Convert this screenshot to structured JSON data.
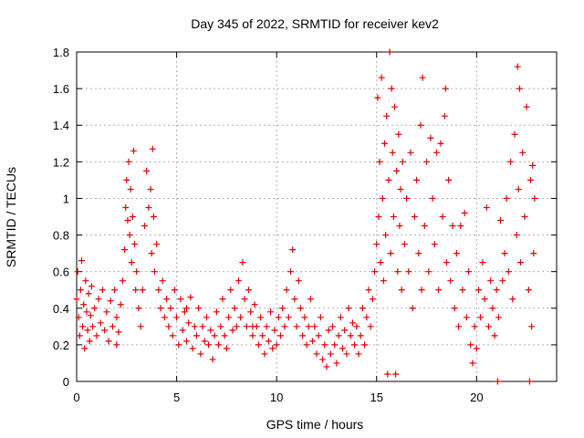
{
  "chart_data": {
    "type": "scatter",
    "title": "Day 345 of 2022, SRMTID for receiver kev2",
    "xlabel": "GPS time / hours",
    "ylabel": "SRMTID / TECUs",
    "xlim": [
      0,
      24
    ],
    "ylim": [
      0,
      1.8
    ],
    "xticks": [
      0,
      5,
      10,
      15,
      20
    ],
    "xtick_labels": [
      "0",
      "5",
      "10",
      "15",
      "20"
    ],
    "yticks": [
      0,
      0.2,
      0.4,
      0.6,
      0.8,
      1,
      1.2,
      1.4,
      1.6,
      1.8
    ],
    "ytick_labels": [
      "0",
      "0.2",
      "0.4",
      "0.6",
      "0.8",
      "1",
      "1.2",
      "1.4",
      "1.6",
      "1.8"
    ],
    "grid": true,
    "marker": "plus",
    "color": "#e00000",
    "series": [
      {
        "name": "SRMTID",
        "points": [
          [
            0.0,
            0.45
          ],
          [
            0.05,
            0.6
          ],
          [
            0.1,
            0.35
          ],
          [
            0.15,
            0.25
          ],
          [
            0.2,
            0.5
          ],
          [
            0.25,
            0.66
          ],
          [
            0.3,
            0.3
          ],
          [
            0.35,
            0.42
          ],
          [
            0.4,
            0.18
          ],
          [
            0.45,
            0.55
          ],
          [
            0.5,
            0.38
          ],
          [
            0.55,
            0.28
          ],
          [
            0.6,
            0.48
          ],
          [
            0.65,
            0.22
          ],
          [
            0.7,
            0.36
          ],
          [
            0.75,
            0.52
          ],
          [
            0.8,
            0.3
          ],
          [
            0.9,
            0.4
          ],
          [
            1.0,
            0.25
          ],
          [
            1.1,
            0.45
          ],
          [
            1.2,
            0.32
          ],
          [
            1.3,
            0.5
          ],
          [
            1.4,
            0.28
          ],
          [
            1.5,
            0.38
          ],
          [
            1.6,
            0.22
          ],
          [
            1.7,
            0.44
          ],
          [
            1.8,
            0.3
          ],
          [
            1.9,
            0.5
          ],
          [
            2.0,
            0.35
          ],
          [
            2.1,
            0.27
          ],
          [
            2.2,
            0.42
          ],
          [
            2.3,
            0.55
          ],
          [
            2.4,
            0.72
          ],
          [
            2.45,
            0.95
          ],
          [
            2.5,
            1.1
          ],
          [
            2.55,
            0.88
          ],
          [
            2.6,
            1.2
          ],
          [
            2.65,
            0.8
          ],
          [
            2.7,
            1.05
          ],
          [
            2.75,
            0.65
          ],
          [
            2.8,
            0.9
          ],
          [
            2.85,
            1.26
          ],
          [
            2.9,
            0.75
          ],
          [
            2.95,
            0.5
          ],
          [
            3.0,
            0.6
          ],
          [
            3.1,
            0.4
          ],
          [
            3.2,
            0.3
          ],
          [
            3.3,
            0.5
          ],
          [
            3.4,
            0.85
          ],
          [
            3.5,
            1.15
          ],
          [
            3.6,
            0.95
          ],
          [
            3.7,
            1.05
          ],
          [
            3.75,
            0.7
          ],
          [
            3.8,
            1.27
          ],
          [
            3.85,
            0.9
          ],
          [
            3.9,
            0.6
          ],
          [
            4.0,
            0.75
          ],
          [
            4.1,
            0.5
          ],
          [
            4.2,
            0.4
          ],
          [
            4.3,
            0.55
          ],
          [
            4.4,
            0.35
          ],
          [
            4.5,
            0.45
          ],
          [
            4.6,
            0.3
          ],
          [
            4.7,
            0.4
          ],
          [
            4.8,
            0.25
          ],
          [
            4.9,
            0.5
          ],
          [
            5.0,
            0.35
          ],
          [
            5.1,
            0.2
          ],
          [
            5.2,
            0.45
          ],
          [
            5.3,
            0.28
          ],
          [
            5.4,
            0.38
          ],
          [
            5.5,
            0.22
          ],
          [
            5.6,
            0.32
          ],
          [
            5.7,
            0.46
          ],
          [
            5.8,
            0.18
          ],
          [
            5.9,
            0.3
          ],
          [
            6.0,
            0.25
          ],
          [
            6.1,
            0.4
          ],
          [
            6.2,
            0.15
          ],
          [
            6.3,
            0.3
          ],
          [
            6.4,
            0.22
          ],
          [
            6.5,
            0.35
          ],
          [
            6.6,
            0.2
          ],
          [
            6.7,
            0.28
          ],
          [
            6.8,
            0.12
          ],
          [
            6.9,
            0.25
          ],
          [
            7.0,
            0.38
          ],
          [
            7.1,
            0.2
          ],
          [
            7.2,
            0.3
          ],
          [
            7.3,
            0.45
          ],
          [
            7.4,
            0.25
          ],
          [
            7.5,
            0.18
          ],
          [
            7.6,
            0.35
          ],
          [
            7.7,
            0.5
          ],
          [
            7.8,
            0.28
          ],
          [
            7.9,
            0.4
          ],
          [
            8.0,
            0.3
          ],
          [
            8.1,
            0.55
          ],
          [
            8.2,
            0.35
          ],
          [
            8.3,
            0.65
          ],
          [
            8.4,
            0.45
          ],
          [
            8.5,
            0.3
          ],
          [
            8.6,
            0.5
          ],
          [
            8.7,
            0.38
          ],
          [
            8.8,
            0.25
          ],
          [
            8.9,
            0.42
          ],
          [
            9.0,
            0.3
          ],
          [
            9.1,
            0.2
          ],
          [
            9.2,
            0.35
          ],
          [
            9.3,
            0.25
          ],
          [
            9.4,
            0.15
          ],
          [
            9.5,
            0.3
          ],
          [
            9.6,
            0.22
          ],
          [
            9.7,
            0.38
          ],
          [
            9.8,
            0.18
          ],
          [
            9.9,
            0.28
          ],
          [
            10.0,
            0.2
          ],
          [
            10.1,
            0.35
          ],
          [
            10.2,
            0.25
          ],
          [
            10.3,
            0.4
          ],
          [
            10.4,
            0.3
          ],
          [
            10.5,
            0.5
          ],
          [
            10.6,
            0.35
          ],
          [
            10.7,
            0.6
          ],
          [
            10.8,
            0.72
          ],
          [
            10.9,
            0.45
          ],
          [
            11.0,
            0.3
          ],
          [
            11.1,
            0.55
          ],
          [
            11.2,
            0.4
          ],
          [
            11.3,
            0.25
          ],
          [
            11.4,
            0.35
          ],
          [
            11.5,
            0.2
          ],
          [
            11.6,
            0.3
          ],
          [
            11.7,
            0.45
          ],
          [
            11.8,
            0.22
          ],
          [
            11.9,
            0.3
          ],
          [
            12.0,
            0.15
          ],
          [
            12.1,
            0.25
          ],
          [
            12.2,
            0.35
          ],
          [
            12.3,
            0.12
          ],
          [
            12.4,
            0.2
          ],
          [
            12.5,
            0.08
          ],
          [
            12.6,
            0.28
          ],
          [
            12.7,
            0.15
          ],
          [
            12.8,
            0.3
          ],
          [
            12.9,
            0.2
          ],
          [
            13.0,
            0.1
          ],
          [
            13.1,
            0.25
          ],
          [
            13.2,
            0.35
          ],
          [
            13.3,
            0.18
          ],
          [
            13.4,
            0.28
          ],
          [
            13.5,
            0.15
          ],
          [
            13.6,
            0.4
          ],
          [
            13.7,
            0.25
          ],
          [
            13.8,
            0.32
          ],
          [
            13.9,
            0.2
          ],
          [
            14.0,
            0.3
          ],
          [
            14.1,
            0.15
          ],
          [
            14.2,
            0.25
          ],
          [
            14.3,
            0.4
          ],
          [
            14.4,
            0.2
          ],
          [
            14.5,
            0.35
          ],
          [
            14.6,
            0.5
          ],
          [
            14.7,
            0.3
          ],
          [
            14.8,
            0.45
          ],
          [
            14.9,
            0.6
          ],
          [
            15.0,
            0.75
          ],
          [
            15.05,
            1.55
          ],
          [
            15.1,
            0.9
          ],
          [
            15.15,
            1.2
          ],
          [
            15.2,
            0.65
          ],
          [
            15.25,
            1.66
          ],
          [
            15.3,
            1.0
          ],
          [
            15.35,
            0.55
          ],
          [
            15.4,
            1.3
          ],
          [
            15.45,
            0.8
          ],
          [
            15.5,
            1.45
          ],
          [
            15.55,
            0.04
          ],
          [
            15.6,
            1.1
          ],
          [
            15.65,
            1.8
          ],
          [
            15.7,
            0.7
          ],
          [
            15.75,
            1.6
          ],
          [
            15.8,
            1.25
          ],
          [
            15.85,
            0.9
          ],
          [
            15.9,
            1.5
          ],
          [
            15.95,
            0.04
          ],
          [
            16.0,
            1.15
          ],
          [
            16.05,
            0.6
          ],
          [
            16.1,
            1.35
          ],
          [
            16.15,
            0.85
          ],
          [
            16.2,
            1.05
          ],
          [
            16.25,
            0.5
          ],
          [
            16.3,
            1.2
          ],
          [
            16.4,
            0.75
          ],
          [
            16.5,
            1.0
          ],
          [
            16.6,
            0.6
          ],
          [
            16.7,
            1.25
          ],
          [
            16.8,
            0.4
          ],
          [
            16.9,
            0.9
          ],
          [
            17.0,
            1.1
          ],
          [
            17.1,
            0.7
          ],
          [
            17.2,
            1.4
          ],
          [
            17.25,
            0.5
          ],
          [
            17.3,
            1.66
          ],
          [
            17.4,
            0.85
          ],
          [
            17.5,
            1.2
          ],
          [
            17.6,
            0.6
          ],
          [
            17.7,
            1.33
          ],
          [
            17.8,
            1.0
          ],
          [
            17.9,
            0.75
          ],
          [
            18.0,
            1.25
          ],
          [
            18.1,
            0.5
          ],
          [
            18.2,
            1.3
          ],
          [
            18.3,
            0.9
          ],
          [
            18.4,
            1.45
          ],
          [
            18.45,
            1.6
          ],
          [
            18.5,
            0.65
          ],
          [
            18.6,
            1.1
          ],
          [
            18.7,
            0.55
          ],
          [
            18.8,
            0.85
          ],
          [
            18.9,
            0.4
          ],
          [
            19.0,
            0.7
          ],
          [
            19.1,
            0.3
          ],
          [
            19.2,
            0.85
          ],
          [
            19.3,
            0.5
          ],
          [
            19.4,
            0.92
          ],
          [
            19.5,
            0.35
          ],
          [
            19.6,
            0.6
          ],
          [
            19.7,
            0.2
          ],
          [
            19.8,
            0.1
          ],
          [
            19.9,
            0.3
          ],
          [
            20.0,
            0.18
          ],
          [
            20.1,
            0.5
          ],
          [
            20.2,
            0.35
          ],
          [
            20.3,
            0.65
          ],
          [
            20.4,
            0.45
          ],
          [
            20.5,
            0.95
          ],
          [
            20.6,
            0.3
          ],
          [
            20.7,
            0.55
          ],
          [
            20.8,
            0.4
          ],
          [
            20.9,
            0.25
          ],
          [
            21.0,
            0.5
          ],
          [
            21.05,
            0.0
          ],
          [
            21.1,
            0.35
          ],
          [
            21.2,
            0.88
          ],
          [
            21.3,
            0.55
          ],
          [
            21.4,
            0.7
          ],
          [
            21.5,
            1.0
          ],
          [
            21.6,
            0.6
          ],
          [
            21.7,
            1.2
          ],
          [
            21.8,
            0.45
          ],
          [
            21.9,
            1.35
          ],
          [
            22.0,
            0.8
          ],
          [
            22.05,
            1.72
          ],
          [
            22.1,
            1.05
          ],
          [
            22.15,
            1.6
          ],
          [
            22.2,
            0.65
          ],
          [
            22.3,
            1.25
          ],
          [
            22.4,
            0.9
          ],
          [
            22.5,
            1.5
          ],
          [
            22.6,
            0.5
          ],
          [
            22.65,
            0.0
          ],
          [
            22.7,
            1.1
          ],
          [
            22.75,
            0.3
          ],
          [
            22.8,
            1.18
          ],
          [
            22.85,
            0.7
          ],
          [
            22.9,
            1.0
          ],
          [
            2.0,
            0.2
          ],
          [
            5.5,
            0.4
          ],
          [
            8.8,
            0.3
          ]
        ]
      }
    ]
  }
}
